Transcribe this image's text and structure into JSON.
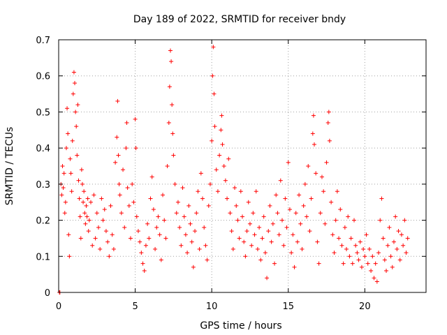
{
  "chart_data": {
    "type": "scatter",
    "title": "Day 189 of 2022, SRMTID for receiver bndy",
    "xlabel": "GPS time / hours",
    "ylabel": "SRMTID / TECUs",
    "xlim": [
      0,
      24
    ],
    "ylim": [
      0,
      0.7
    ],
    "grid": true,
    "marker": "+",
    "color": "#ff0000",
    "x_ticks": [
      0,
      5,
      10,
      15,
      20
    ],
    "x_tick_labels": [
      "0",
      "5",
      "10",
      "15",
      "20"
    ],
    "y_ticks": [
      0,
      0.1,
      0.2,
      0.3,
      0.4,
      0.5,
      0.6,
      0.7
    ],
    "y_tick_labels": [
      "0",
      "0.1",
      "0.2",
      "0.3",
      "0.4",
      "0.5",
      "0.6",
      "0.7"
    ],
    "series": [
      {
        "name": "SRMTID",
        "points": [
          [
            0.05,
            0.0
          ],
          [
            0.08,
            0.0
          ],
          [
            0.15,
            0.3
          ],
          [
            0.2,
            0.27
          ],
          [
            0.25,
            0.35
          ],
          [
            0.3,
            0.29
          ],
          [
            0.35,
            0.33
          ],
          [
            0.4,
            0.22
          ],
          [
            0.45,
            0.25
          ],
          [
            0.5,
            0.4
          ],
          [
            0.55,
            0.51
          ],
          [
            0.6,
            0.44
          ],
          [
            0.65,
            0.16
          ],
          [
            0.7,
            0.1
          ],
          [
            0.75,
            0.37
          ],
          [
            0.8,
            0.33
          ],
          [
            0.85,
            0.28
          ],
          [
            0.9,
            0.42
          ],
          [
            0.95,
            0.55
          ],
          [
            1.0,
            0.61
          ],
          [
            1.05,
            0.58
          ],
          [
            1.1,
            0.5
          ],
          [
            1.15,
            0.46
          ],
          [
            1.2,
            0.38
          ],
          [
            1.25,
            0.52
          ],
          [
            1.3,
            0.31
          ],
          [
            1.35,
            0.26
          ],
          [
            1.4,
            0.21
          ],
          [
            1.45,
            0.15
          ],
          [
            1.5,
            0.34
          ],
          [
            1.55,
            0.3
          ],
          [
            1.6,
            0.25
          ],
          [
            1.65,
            0.28
          ],
          [
            1.7,
            0.22
          ],
          [
            1.75,
            0.19
          ],
          [
            1.8,
            0.24
          ],
          [
            1.85,
            0.21
          ],
          [
            1.9,
            0.26
          ],
          [
            1.95,
            0.17
          ],
          [
            2.0,
            0.2
          ],
          [
            2.1,
            0.25
          ],
          [
            2.2,
            0.13
          ],
          [
            2.3,
            0.27
          ],
          [
            2.4,
            0.15
          ],
          [
            2.5,
            0.22
          ],
          [
            2.6,
            0.18
          ],
          [
            2.7,
            0.12
          ],
          [
            2.8,
            0.26
          ],
          [
            2.9,
            0.2
          ],
          [
            3.0,
            0.23
          ],
          [
            3.1,
            0.17
          ],
          [
            3.2,
            0.14
          ],
          [
            3.3,
            0.1
          ],
          [
            3.4,
            0.24
          ],
          [
            3.5,
            0.16
          ],
          [
            3.6,
            0.12
          ],
          [
            3.7,
            0.36
          ],
          [
            3.8,
            0.43
          ],
          [
            3.85,
            0.53
          ],
          [
            3.9,
            0.38
          ],
          [
            3.95,
            0.3
          ],
          [
            4.0,
            0.27
          ],
          [
            4.1,
            0.22
          ],
          [
            4.2,
            0.34
          ],
          [
            4.3,
            0.18
          ],
          [
            4.4,
            0.4
          ],
          [
            4.45,
            0.47
          ],
          [
            4.5,
            0.29
          ],
          [
            4.6,
            0.24
          ],
          [
            4.7,
            0.15
          ],
          [
            4.8,
            0.3
          ],
          [
            4.9,
            0.25
          ],
          [
            5.0,
            0.48
          ],
          [
            5.05,
            0.4
          ],
          [
            5.1,
            0.21
          ],
          [
            5.2,
            0.17
          ],
          [
            5.3,
            0.14
          ],
          [
            5.4,
            0.11
          ],
          [
            5.5,
            0.08
          ],
          [
            5.6,
            0.06
          ],
          [
            5.7,
            0.13
          ],
          [
            5.8,
            0.19
          ],
          [
            5.9,
            0.15
          ],
          [
            6.0,
            0.26
          ],
          [
            6.1,
            0.32
          ],
          [
            6.2,
            0.23
          ],
          [
            6.3,
            0.12
          ],
          [
            6.4,
            0.18
          ],
          [
            6.5,
            0.21
          ],
          [
            6.6,
            0.16
          ],
          [
            6.7,
            0.09
          ],
          [
            6.8,
            0.27
          ],
          [
            6.9,
            0.2
          ],
          [
            7.0,
            0.15
          ],
          [
            7.1,
            0.35
          ],
          [
            7.2,
            0.47
          ],
          [
            7.25,
            0.57
          ],
          [
            7.3,
            0.67
          ],
          [
            7.35,
            0.64
          ],
          [
            7.4,
            0.52
          ],
          [
            7.45,
            0.44
          ],
          [
            7.5,
            0.38
          ],
          [
            7.6,
            0.3
          ],
          [
            7.7,
            0.22
          ],
          [
            7.8,
            0.25
          ],
          [
            7.9,
            0.18
          ],
          [
            8.0,
            0.13
          ],
          [
            8.1,
            0.29
          ],
          [
            8.2,
            0.21
          ],
          [
            8.3,
            0.16
          ],
          [
            8.4,
            0.11
          ],
          [
            8.5,
            0.24
          ],
          [
            8.6,
            0.19
          ],
          [
            8.7,
            0.14
          ],
          [
            8.8,
            0.07
          ],
          [
            8.9,
            0.17
          ],
          [
            9.0,
            0.22
          ],
          [
            9.1,
            0.28
          ],
          [
            9.2,
            0.12
          ],
          [
            9.3,
            0.33
          ],
          [
            9.4,
            0.26
          ],
          [
            9.5,
            0.18
          ],
          [
            9.6,
            0.13
          ],
          [
            9.7,
            0.09
          ],
          [
            9.8,
            0.24
          ],
          [
            9.9,
            0.3
          ],
          [
            10.0,
            0.42
          ],
          [
            10.05,
            0.6
          ],
          [
            10.1,
            0.68
          ],
          [
            10.15,
            0.55
          ],
          [
            10.2,
            0.46
          ],
          [
            10.3,
            0.34
          ],
          [
            10.4,
            0.28
          ],
          [
            10.5,
            0.38
          ],
          [
            10.6,
            0.45
          ],
          [
            10.65,
            0.49
          ],
          [
            10.7,
            0.41
          ],
          [
            10.8,
            0.35
          ],
          [
            10.9,
            0.31
          ],
          [
            11.0,
            0.26
          ],
          [
            11.1,
            0.37
          ],
          [
            11.2,
            0.22
          ],
          [
            11.3,
            0.17
          ],
          [
            11.4,
            0.12
          ],
          [
            11.5,
            0.29
          ],
          [
            11.6,
            0.24
          ],
          [
            11.7,
            0.2
          ],
          [
            11.8,
            0.15
          ],
          [
            11.9,
            0.28
          ],
          [
            12.0,
            0.21
          ],
          [
            12.1,
            0.14
          ],
          [
            12.2,
            0.1
          ],
          [
            12.3,
            0.17
          ],
          [
            12.4,
            0.25
          ],
          [
            12.5,
            0.19
          ],
          [
            12.6,
            0.13
          ],
          [
            12.7,
            0.22
          ],
          [
            12.8,
            0.16
          ],
          [
            12.9,
            0.28
          ],
          [
            13.0,
            0.12
          ],
          [
            13.1,
            0.18
          ],
          [
            13.2,
            0.09
          ],
          [
            13.3,
            0.15
          ],
          [
            13.4,
            0.21
          ],
          [
            13.5,
            0.11
          ],
          [
            13.6,
            0.04
          ],
          [
            13.7,
            0.17
          ],
          [
            13.8,
            0.24
          ],
          [
            13.9,
            0.14
          ],
          [
            14.0,
            0.19
          ],
          [
            14.1,
            0.08
          ],
          [
            14.2,
            0.27
          ],
          [
            14.3,
            0.22
          ],
          [
            14.4,
            0.16
          ],
          [
            14.5,
            0.31
          ],
          [
            14.6,
            0.2
          ],
          [
            14.7,
            0.13
          ],
          [
            14.8,
            0.26
          ],
          [
            14.9,
            0.18
          ],
          [
            15.0,
            0.36
          ],
          [
            15.1,
            0.23
          ],
          [
            15.2,
            0.11
          ],
          [
            15.3,
            0.16
          ],
          [
            15.4,
            0.07
          ],
          [
            15.5,
            0.22
          ],
          [
            15.6,
            0.14
          ],
          [
            15.7,
            0.27
          ],
          [
            15.8,
            0.19
          ],
          [
            15.9,
            0.12
          ],
          [
            16.0,
            0.24
          ],
          [
            16.1,
            0.3
          ],
          [
            16.2,
            0.21
          ],
          [
            16.3,
            0.35
          ],
          [
            16.4,
            0.17
          ],
          [
            16.5,
            0.26
          ],
          [
            16.6,
            0.44
          ],
          [
            16.65,
            0.49
          ],
          [
            16.7,
            0.41
          ],
          [
            16.8,
            0.33
          ],
          [
            16.9,
            0.14
          ],
          [
            17.0,
            0.08
          ],
          [
            17.1,
            0.22
          ],
          [
            17.2,
            0.32
          ],
          [
            17.3,
            0.28
          ],
          [
            17.4,
            0.19
          ],
          [
            17.5,
            0.36
          ],
          [
            17.6,
            0.47
          ],
          [
            17.65,
            0.5
          ],
          [
            17.7,
            0.42
          ],
          [
            17.8,
            0.25
          ],
          [
            17.9,
            0.16
          ],
          [
            18.0,
            0.11
          ],
          [
            18.1,
            0.2
          ],
          [
            18.2,
            0.28
          ],
          [
            18.3,
            0.15
          ],
          [
            18.4,
            0.23
          ],
          [
            18.5,
            0.13
          ],
          [
            18.6,
            0.08
          ],
          [
            18.7,
            0.18
          ],
          [
            18.8,
            0.12
          ],
          [
            18.9,
            0.21
          ],
          [
            19.0,
            0.1
          ],
          [
            19.1,
            0.15
          ],
          [
            19.2,
            0.08
          ],
          [
            19.3,
            0.2
          ],
          [
            19.4,
            0.13
          ],
          [
            19.5,
            0.11
          ],
          [
            19.6,
            0.09
          ],
          [
            19.7,
            0.14
          ],
          [
            19.8,
            0.07
          ],
          [
            19.9,
            0.12
          ],
          [
            20.0,
            0.1
          ],
          [
            20.1,
            0.16
          ],
          [
            20.2,
            0.08
          ],
          [
            20.3,
            0.12
          ],
          [
            20.4,
            0.06
          ],
          [
            20.5,
            0.1
          ],
          [
            20.6,
            0.04
          ],
          [
            20.7,
            0.08
          ],
          [
            20.8,
            0.03
          ],
          [
            20.9,
            0.11
          ],
          [
            21.0,
            0.2
          ],
          [
            21.1,
            0.26
          ],
          [
            21.2,
            0.15
          ],
          [
            21.3,
            0.09
          ],
          [
            21.4,
            0.06
          ],
          [
            21.5,
            0.13
          ],
          [
            21.6,
            0.18
          ],
          [
            21.7,
            0.1
          ],
          [
            21.8,
            0.07
          ],
          [
            21.9,
            0.14
          ],
          [
            22.0,
            0.21
          ],
          [
            22.1,
            0.12
          ],
          [
            22.2,
            0.17
          ],
          [
            22.3,
            0.09
          ],
          [
            22.4,
            0.16
          ],
          [
            22.5,
            0.13
          ],
          [
            22.6,
            0.2
          ],
          [
            22.7,
            0.11
          ],
          [
            22.8,
            0.15
          ]
        ]
      }
    ]
  }
}
